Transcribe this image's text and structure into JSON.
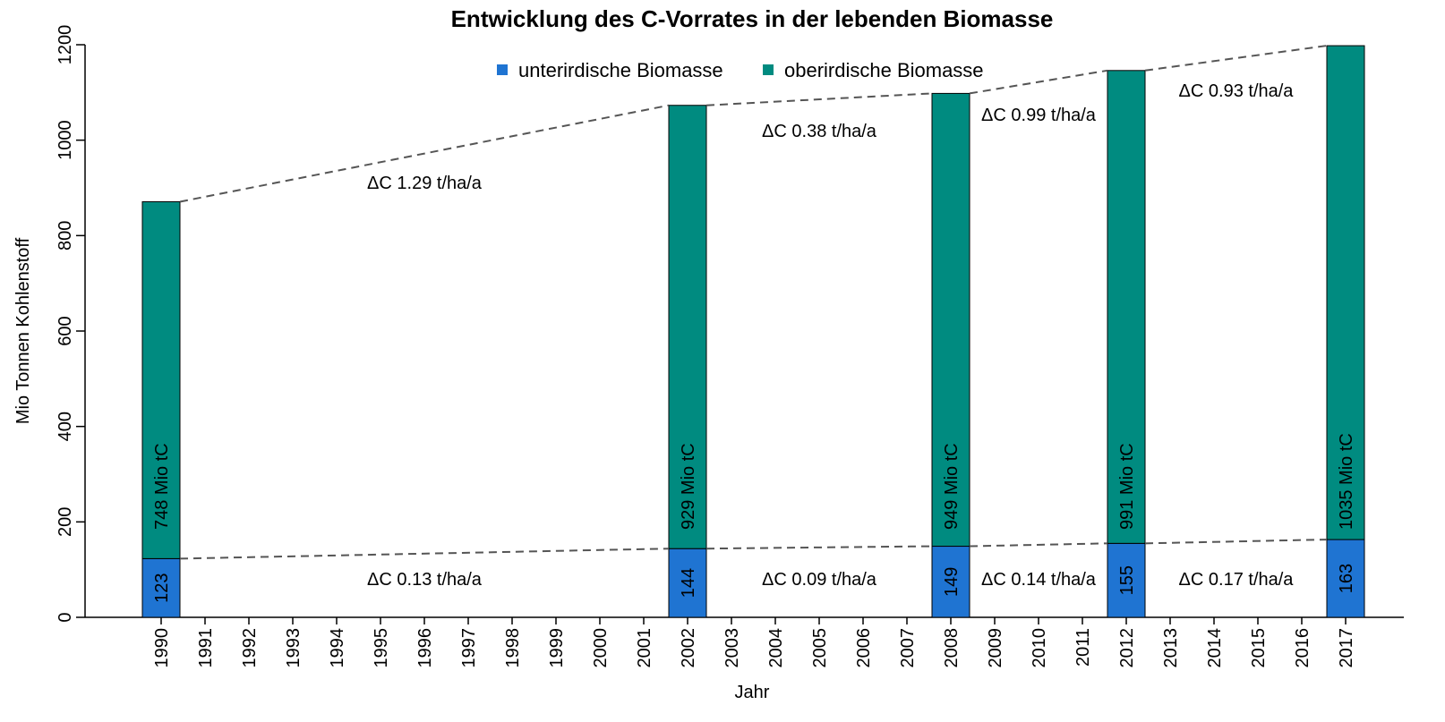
{
  "chart_data": {
    "type": "bar",
    "stacked": true,
    "title": "Entwicklung des C-Vorrates in der lebenden Biomasse",
    "xlabel": "Jahr",
    "ylabel": "Mio Tonnen Kohlenstoff",
    "categories": [
      "1990",
      "1991",
      "1992",
      "1993",
      "1994",
      "1995",
      "1996",
      "1997",
      "1998",
      "1999",
      "2000",
      "2001",
      "2002",
      "2003",
      "2004",
      "2005",
      "2006",
      "2007",
      "2008",
      "2009",
      "2010",
      "2011",
      "2012",
      "2013",
      "2014",
      "2015",
      "2016",
      "2017"
    ],
    "series": [
      {
        "name": "unterirdische Biomasse",
        "color": "#1f74d2",
        "values": [
          123,
          null,
          null,
          null,
          null,
          null,
          null,
          null,
          null,
          null,
          null,
          null,
          144,
          null,
          null,
          null,
          null,
          null,
          149,
          null,
          null,
          null,
          155,
          null,
          null,
          null,
          null,
          163
        ]
      },
      {
        "name": "oberirdische Biomasse",
        "color": "#008b80",
        "values": [
          748,
          null,
          null,
          null,
          null,
          null,
          null,
          null,
          null,
          null,
          null,
          null,
          929,
          null,
          null,
          null,
          null,
          null,
          949,
          null,
          null,
          null,
          991,
          null,
          null,
          null,
          null,
          1035
        ],
        "value_labels": [
          "748 Mio tC",
          null,
          null,
          null,
          null,
          null,
          null,
          null,
          null,
          null,
          null,
          null,
          "929 Mio tC",
          null,
          null,
          null,
          null,
          null,
          "949 Mio tC",
          null,
          null,
          null,
          "991 Mio tC",
          null,
          null,
          null,
          null,
          "1035 Mio tC"
        ]
      }
    ],
    "annotations_upper": [
      "ΔC 1.29 t/ha/a",
      "ΔC 0.38 t/ha/a",
      "ΔC 0.99 t/ha/a",
      "ΔC 0.93 t/ha/a"
    ],
    "annotations_lower": [
      "ΔC 0.13 t/ha/a",
      "ΔC 0.09 t/ha/a",
      "ΔC 0.14 t/ha/a",
      "ΔC 0.17 t/ha/a"
    ],
    "ylim": [
      0,
      1200
    ],
    "yticks": [
      0,
      200,
      400,
      600,
      800,
      1000,
      1200
    ],
    "legend": "top",
    "grid": false
  }
}
